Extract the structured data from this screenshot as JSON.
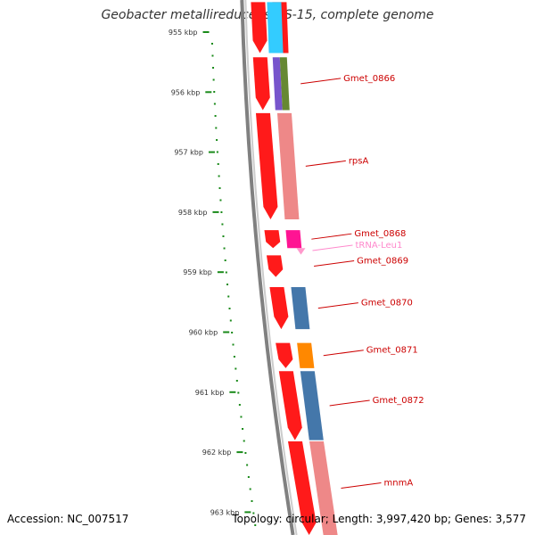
{
  "title": "Geobacter metallireducens GS-15, complete genome",
  "footer": {
    "accession": "Accession: NC_007517",
    "topology": "Topology: circular; Length: 3,997,420 bp; Genes: 3,577"
  },
  "colors": {
    "backbone": "#808080",
    "forward_cds": "#ff1a1a",
    "tick": "#1a8a1a",
    "label_line": "#cc0000",
    "trna_label": "#ff99cc"
  },
  "scale": {
    "unit": "kbp",
    "ticks": [
      {
        "kbp": 955,
        "label": "955 kbp"
      },
      {
        "kbp": 956,
        "label": "956 kbp"
      },
      {
        "kbp": 957,
        "label": "957 kbp"
      },
      {
        "kbp": 958,
        "label": "958 kbp"
      },
      {
        "kbp": 959,
        "label": "959 kbp"
      },
      {
        "kbp": 960,
        "label": "960 kbp"
      },
      {
        "kbp": 961,
        "label": "961 kbp"
      },
      {
        "kbp": 962,
        "label": "962 kbp"
      },
      {
        "kbp": 963,
        "label": "963 kbp"
      }
    ]
  },
  "features": [
    {
      "name": "",
      "start_kbp": 954.5,
      "end_kbp": 955.35,
      "strand": 1,
      "cog_color": "#ff1a1a"
    },
    {
      "name": "",
      "start_kbp": 954.5,
      "end_kbp": 955.35,
      "strand": 0,
      "cog_color": "#33ccff"
    },
    {
      "name": "Gmet_0866",
      "start_kbp": 955.42,
      "end_kbp": 956.3,
      "strand": 1,
      "cog_color": "#7755cc",
      "cog_color2": "#668833",
      "label_color": "#cc0000"
    },
    {
      "name": "rpsA",
      "start_kbp": 956.35,
      "end_kbp": 958.12,
      "strand": 1,
      "cog_color": "#ee8888",
      "label_color": "#cc0000"
    },
    {
      "name": "Gmet_0868",
      "start_kbp": 958.3,
      "end_kbp": 958.6,
      "strand": 1,
      "cog_color": "#ff1493",
      "label_color": "#cc0000"
    },
    {
      "name": "tRNA-Leu1",
      "start_kbp": 958.6,
      "end_kbp": 958.68,
      "strand": 1,
      "cog_color": "#ff99cc",
      "label_color": "#ff88cc",
      "trna": true
    },
    {
      "name": "Gmet_0869",
      "start_kbp": 958.72,
      "end_kbp": 959.08,
      "strand": 1,
      "cog_color": "",
      "label_color": "#cc0000"
    },
    {
      "name": "Gmet_0870",
      "start_kbp": 959.25,
      "end_kbp": 959.95,
      "strand": 1,
      "cog_color": "#4477aa",
      "label_color": "#cc0000"
    },
    {
      "name": "Gmet_0871",
      "start_kbp": 960.18,
      "end_kbp": 960.6,
      "strand": 1,
      "cog_color": "#ff8800",
      "label_color": "#cc0000"
    },
    {
      "name": "Gmet_0872",
      "start_kbp": 960.65,
      "end_kbp": 961.8,
      "strand": 1,
      "cog_color": "#4477aa",
      "label_color": "#cc0000"
    },
    {
      "name": "mnmA",
      "start_kbp": 961.82,
      "end_kbp": 963.45,
      "strand": 1,
      "cog_color": "#ee8888",
      "label_color": "#cc0000"
    }
  ]
}
